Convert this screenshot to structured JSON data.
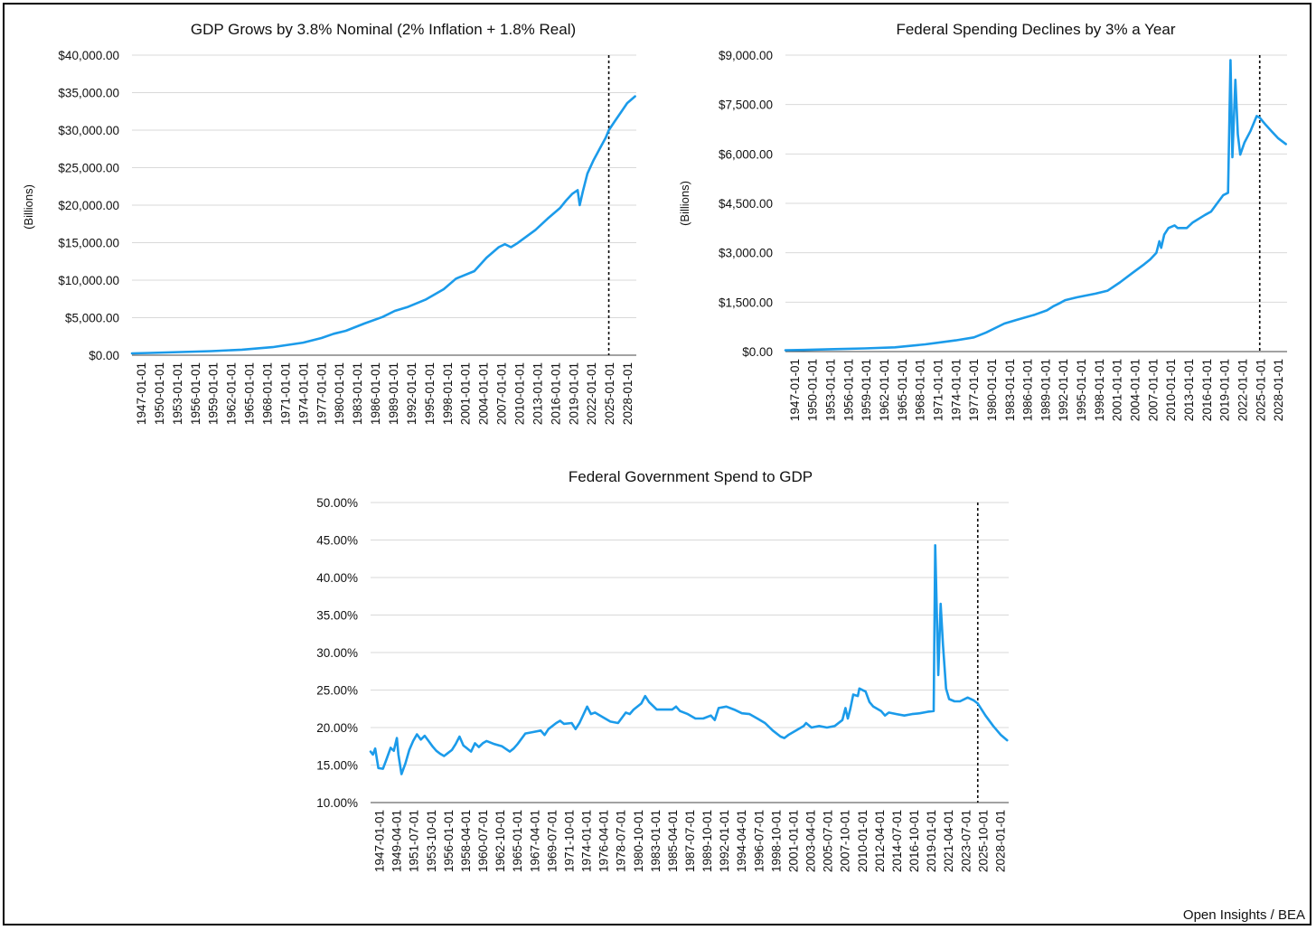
{
  "credit": "Open Insights / BEA",
  "colors": {
    "line": "#1b9bea",
    "grid": "#d9d9d9",
    "projection_marker": "#000000"
  },
  "chart_data": [
    {
      "id": "gdp",
      "type": "line",
      "title": "GDP Grows by 3.8% Nominal (2% Inflation + 1.8% Real)",
      "ylabel": "(Billions)",
      "xlabel": "",
      "grid": true,
      "ylim": [
        0,
        40000
      ],
      "x_range_years": [
        1947,
        2029.5
      ],
      "projection_marker_year": 2025.0,
      "yticks": [
        "$0.00",
        "$5,000.00",
        "$10,000.00",
        "$15,000.00",
        "$20,000.00",
        "$25,000.00",
        "$30,000.00",
        "$35,000.00",
        "$40,000.00"
      ],
      "xticks": [
        "1947-01-01",
        "1950-01-01",
        "1953-01-01",
        "1956-01-01",
        "1959-01-01",
        "1962-01-01",
        "1965-01-01",
        "1968-01-01",
        "1971-01-01",
        "1974-01-01",
        "1977-01-01",
        "1980-01-01",
        "1983-01-01",
        "1986-01-01",
        "1989-01-01",
        "1992-01-01",
        "1995-01-01",
        "1998-01-01",
        "2001-01-01",
        "2004-01-01",
        "2007-01-01",
        "2010-01-01",
        "2013-01-01",
        "2016-01-01",
        "2019-01-01",
        "2022-01-01",
        "2025-01-01",
        "2028-01-01"
      ],
      "points": [
        [
          1947,
          243
        ],
        [
          1950,
          300
        ],
        [
          1955,
          420
        ],
        [
          1960,
          540
        ],
        [
          1965,
          740
        ],
        [
          1970,
          1070
        ],
        [
          1973,
          1430
        ],
        [
          1975,
          1680
        ],
        [
          1978,
          2290
        ],
        [
          1980,
          2860
        ],
        [
          1982,
          3250
        ],
        [
          1985,
          4220
        ],
        [
          1988,
          5100
        ],
        [
          1990,
          5900
        ],
        [
          1992,
          6400
        ],
        [
          1995,
          7400
        ],
        [
          1998,
          8800
        ],
        [
          2000,
          10200
        ],
        [
          2003,
          11200
        ],
        [
          2005,
          13000
        ],
        [
          2007,
          14400
        ],
        [
          2008,
          14800
        ],
        [
          2009,
          14400
        ],
        [
          2010,
          14900
        ],
        [
          2013,
          16700
        ],
        [
          2015,
          18200
        ],
        [
          2017,
          19600
        ],
        [
          2018,
          20600
        ],
        [
          2019,
          21500
        ],
        [
          2019.9,
          22000
        ],
        [
          2020.25,
          20000
        ],
        [
          2020.75,
          21800
        ],
        [
          2021.5,
          24200
        ],
        [
          2022.5,
          26000
        ],
        [
          2023.5,
          27500
        ],
        [
          2024.5,
          29000
        ],
        [
          2025,
          30000
        ],
        [
          2026,
          31200
        ],
        [
          2027,
          32400
        ],
        [
          2028,
          33600
        ],
        [
          2029.3,
          34500
        ]
      ]
    },
    {
      "id": "spending",
      "type": "line",
      "title": "Federal Spending Declines by 3% a Year",
      "ylabel": "(Billions)",
      "xlabel": "",
      "grid": true,
      "ylim": [
        0,
        9000
      ],
      "x_range_years": [
        1947,
        2029.5
      ],
      "projection_marker_year": 2025.0,
      "yticks": [
        "$0.00",
        "$1,500.00",
        "$3,000.00",
        "$4,500.00",
        "$6,000.00",
        "$7,500.00",
        "$9,000.00"
      ],
      "xticks": [
        "1947-01-01",
        "1950-01-01",
        "1953-01-01",
        "1956-01-01",
        "1959-01-01",
        "1962-01-01",
        "1965-01-01",
        "1968-01-01",
        "1971-01-01",
        "1974-01-01",
        "1977-01-01",
        "1980-01-01",
        "1983-01-01",
        "1986-01-01",
        "1989-01-01",
        "1992-01-01",
        "1995-01-01",
        "1998-01-01",
        "2001-01-01",
        "2004-01-01",
        "2007-01-01",
        "2010-01-01",
        "2013-01-01",
        "2016-01-01",
        "2019-01-01",
        "2022-01-01",
        "2025-01-01",
        "2028-01-01"
      ],
      "points": [
        [
          1947,
          40
        ],
        [
          1950,
          50
        ],
        [
          1955,
          75
        ],
        [
          1960,
          95
        ],
        [
          1965,
          130
        ],
        [
          1970,
          220
        ],
        [
          1975,
          340
        ],
        [
          1978,
          430
        ],
        [
          1980,
          580
        ],
        [
          1983,
          850
        ],
        [
          1985,
          960
        ],
        [
          1988,
          1120
        ],
        [
          1990,
          1250
        ],
        [
          1991,
          1370
        ],
        [
          1992,
          1460
        ],
        [
          1993,
          1560
        ],
        [
          1995,
          1650
        ],
        [
          1998,
          1760
        ],
        [
          2000,
          1850
        ],
        [
          2002,
          2100
        ],
        [
          2004,
          2380
        ],
        [
          2006,
          2650
        ],
        [
          2007,
          2800
        ],
        [
          2008,
          3000
        ],
        [
          2008.5,
          3350
        ],
        [
          2008.8,
          3150
        ],
        [
          2009.3,
          3550
        ],
        [
          2010,
          3750
        ],
        [
          2011,
          3830
        ],
        [
          2011.5,
          3750
        ],
        [
          2013,
          3750
        ],
        [
          2014,
          3920
        ],
        [
          2016,
          4150
        ],
        [
          2017,
          4250
        ],
        [
          2018,
          4500
        ],
        [
          2019,
          4750
        ],
        [
          2019.8,
          4820
        ],
        [
          2020.2,
          8850
        ],
        [
          2020.5,
          5900
        ],
        [
          2021.0,
          8250
        ],
        [
          2021.4,
          6600
        ],
        [
          2021.8,
          5980
        ],
        [
          2022.5,
          6350
        ],
        [
          2023.5,
          6700
        ],
        [
          2024.5,
          7150
        ],
        [
          2025,
          7100
        ],
        [
          2026,
          6880
        ],
        [
          2027,
          6680
        ],
        [
          2028,
          6480
        ],
        [
          2029.3,
          6300
        ]
      ]
    },
    {
      "id": "ratio",
      "type": "line",
      "title": "Federal Government Spend to GDP",
      "ylabel": "",
      "xlabel": "",
      "grid": true,
      "ylim": [
        10,
        50
      ],
      "x_range_years": [
        1947,
        2029.5
      ],
      "projection_marker_year": 2025.5,
      "yticks": [
        "10.00%",
        "15.00%",
        "20.00%",
        "25.00%",
        "30.00%",
        "35.00%",
        "40.00%",
        "45.00%",
        "50.00%"
      ],
      "xticks": [
        "1947-01-01",
        "1949-04-01",
        "1951-07-01",
        "1953-10-01",
        "1956-01-01",
        "1958-04-01",
        "1960-07-01",
        "1962-10-01",
        "1965-01-01",
        "1967-04-01",
        "1969-07-01",
        "1971-10-01",
        "1974-01-01",
        "1976-04-01",
        "1978-07-01",
        "1980-10-01",
        "1983-01-01",
        "1985-04-01",
        "1987-07-01",
        "1989-10-01",
        "1992-01-01",
        "1994-04-01",
        "1996-07-01",
        "1998-10-01",
        "2001-01-01",
        "2003-04-01",
        "2005-07-01",
        "2007-10-01",
        "2010-01-01",
        "2012-04-01",
        "2014-07-01",
        "2016-10-01",
        "2019-01-01",
        "2021-04-01",
        "2023-07-01",
        "2025-10-01",
        "2028-01-01"
      ],
      "points": [
        [
          1947,
          16.8
        ],
        [
          1947.3,
          16.4
        ],
        [
          1947.6,
          17.2
        ],
        [
          1948,
          14.6
        ],
        [
          1948.6,
          14.5
        ],
        [
          1949,
          15.6
        ],
        [
          1949.6,
          17.3
        ],
        [
          1950,
          16.9
        ],
        [
          1950.4,
          18.6
        ],
        [
          1950.6,
          16.4
        ],
        [
          1951,
          13.8
        ],
        [
          1951.5,
          15.2
        ],
        [
          1952,
          17.0
        ],
        [
          1952.5,
          18.2
        ],
        [
          1953,
          19.1
        ],
        [
          1953.5,
          18.4
        ],
        [
          1954,
          18.9
        ],
        [
          1954.5,
          18.2
        ],
        [
          1955,
          17.5
        ],
        [
          1955.5,
          16.9
        ],
        [
          1956,
          16.5
        ],
        [
          1956.5,
          16.2
        ],
        [
          1957,
          16.6
        ],
        [
          1957.5,
          17.0
        ],
        [
          1958,
          17.8
        ],
        [
          1958.5,
          18.8
        ],
        [
          1959,
          17.6
        ],
        [
          1959.5,
          17.2
        ],
        [
          1960,
          16.8
        ],
        [
          1960.5,
          17.9
        ],
        [
          1961,
          17.4
        ],
        [
          1961.5,
          17.9
        ],
        [
          1962,
          18.2
        ],
        [
          1963,
          17.8
        ],
        [
          1964,
          17.5
        ],
        [
          1965,
          16.8
        ],
        [
          1965.5,
          17.2
        ],
        [
          1966,
          17.8
        ],
        [
          1967,
          19.2
        ],
        [
          1968,
          19.4
        ],
        [
          1969,
          19.6
        ],
        [
          1969.5,
          19.0
        ],
        [
          1970,
          19.8
        ],
        [
          1971,
          20.6
        ],
        [
          1971.5,
          20.9
        ],
        [
          1972,
          20.5
        ],
        [
          1973,
          20.6
        ],
        [
          1973.5,
          19.8
        ],
        [
          1974,
          20.6
        ],
        [
          1975,
          22.8
        ],
        [
          1975.5,
          21.8
        ],
        [
          1976,
          22.0
        ],
        [
          1977,
          21.4
        ],
        [
          1978,
          20.8
        ],
        [
          1979,
          20.6
        ],
        [
          1980,
          22.0
        ],
        [
          1980.5,
          21.8
        ],
        [
          1981,
          22.4
        ],
        [
          1982,
          23.2
        ],
        [
          1982.5,
          24.2
        ],
        [
          1983,
          23.4
        ],
        [
          1984,
          22.4
        ],
        [
          1985,
          22.4
        ],
        [
          1986,
          22.4
        ],
        [
          1986.5,
          22.8
        ],
        [
          1987,
          22.2
        ],
        [
          1988,
          21.8
        ],
        [
          1989,
          21.2
        ],
        [
          1990,
          21.2
        ],
        [
          1991,
          21.6
        ],
        [
          1991.5,
          21.0
        ],
        [
          1992,
          22.6
        ],
        [
          1993,
          22.8
        ],
        [
          1994,
          22.4
        ],
        [
          1995,
          21.9
        ],
        [
          1996,
          21.8
        ],
        [
          1997,
          21.2
        ],
        [
          1998,
          20.6
        ],
        [
          1999,
          19.6
        ],
        [
          2000,
          18.8
        ],
        [
          2000.5,
          18.6
        ],
        [
          2001,
          19.0
        ],
        [
          2002,
          19.6
        ],
        [
          2003,
          20.2
        ],
        [
          2003.3,
          20.6
        ],
        [
          2004,
          20.0
        ],
        [
          2005,
          20.2
        ],
        [
          2006,
          20.0
        ],
        [
          2007,
          20.2
        ],
        [
          2008,
          21.0
        ],
        [
          2008.4,
          22.6
        ],
        [
          2008.7,
          21.2
        ],
        [
          2009,
          22.4
        ],
        [
          2009.4,
          24.4
        ],
        [
          2010,
          24.2
        ],
        [
          2010.2,
          25.2
        ],
        [
          2011,
          24.8
        ],
        [
          2011.5,
          23.4
        ],
        [
          2012,
          22.8
        ],
        [
          2013,
          22.2
        ],
        [
          2013.5,
          21.6
        ],
        [
          2014,
          22.0
        ],
        [
          2015,
          21.8
        ],
        [
          2016,
          21.6
        ],
        [
          2017,
          21.8
        ],
        [
          2018,
          21.9
        ],
        [
          2019,
          22.1
        ],
        [
          2019.8,
          22.2
        ],
        [
          2020.0,
          44.3
        ],
        [
          2020.4,
          27.0
        ],
        [
          2020.7,
          36.5
        ],
        [
          2021.0,
          31.0
        ],
        [
          2021.4,
          25.2
        ],
        [
          2021.8,
          23.8
        ],
        [
          2022.5,
          23.5
        ],
        [
          2023.2,
          23.5
        ],
        [
          2024.2,
          24.0
        ],
        [
          2025,
          23.6
        ],
        [
          2025.5,
          23.2
        ],
        [
          2026.5,
          21.6
        ],
        [
          2027.5,
          20.2
        ],
        [
          2028.5,
          19.0
        ],
        [
          2029.3,
          18.3
        ]
      ]
    }
  ]
}
